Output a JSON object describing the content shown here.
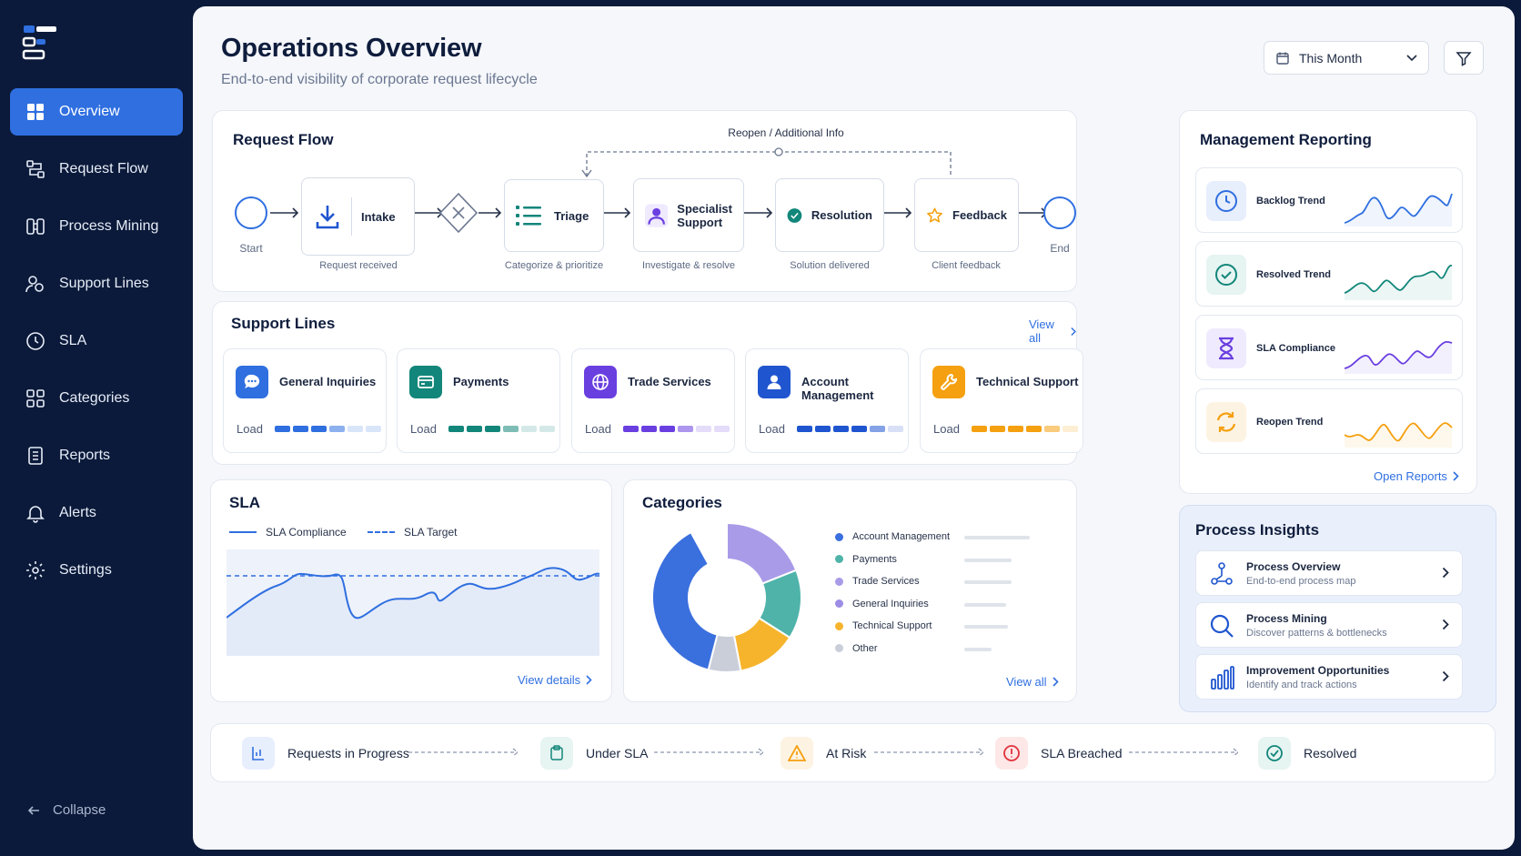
{
  "sidebar": {
    "items": [
      {
        "label": "Overview",
        "icon": "grid-icon"
      },
      {
        "label": "Request Flow",
        "icon": "flow-icon"
      },
      {
        "label": "Process Mining",
        "icon": "mining-icon"
      },
      {
        "label": "Support Lines",
        "icon": "users-icon"
      },
      {
        "label": "SLA",
        "icon": "clock-icon"
      },
      {
        "label": "Categories",
        "icon": "categories-icon"
      },
      {
        "label": "Reports",
        "icon": "report-icon"
      },
      {
        "label": "Alerts",
        "icon": "bell-icon"
      },
      {
        "label": "Settings",
        "icon": "gear-icon"
      }
    ],
    "collapse_label": "Collapse"
  },
  "header": {
    "title": "Operations Overview",
    "subtitle": "End-to-end visibility of corporate request lifecycle",
    "period": "This Month"
  },
  "request_flow": {
    "title": "Request Flow",
    "loop_label": "Reopen / Additional Info",
    "start": "Start",
    "end": "End",
    "steps": [
      {
        "label": "Intake",
        "caption": "Request received"
      },
      {
        "label": "Triage",
        "caption": "Categorize & prioritize"
      },
      {
        "label": "Specialist Support",
        "label_line1": "Specialist",
        "label_line2": "Support",
        "caption": "Investigate & resolve"
      },
      {
        "label": "Resolution",
        "caption": "Solution delivered"
      },
      {
        "label": "Feedback",
        "caption": "Client feedback"
      }
    ]
  },
  "support_lines": {
    "title": "Support Lines",
    "view_all": "View all",
    "load_label": "Load",
    "items": [
      {
        "name": "General Inquiries",
        "color": "#2f6fe0",
        "load": 0.6
      },
      {
        "name": "Payments",
        "color": "#12867a",
        "load": 0.6
      },
      {
        "name": "Trade Services",
        "color": "#6a3fe0",
        "load": 0.6
      },
      {
        "name": "Account Management",
        "color": "#1f55cf",
        "load": 0.7
      },
      {
        "name": "Technical Support",
        "color": "#f5a010",
        "load": 0.7
      }
    ]
  },
  "sla": {
    "title": "SLA",
    "legend_compliance": "SLA Compliance",
    "legend_target": "SLA Target",
    "view_details": "View details"
  },
  "categories": {
    "title": "Categories",
    "view_all": "View all",
    "items": [
      {
        "name": "Account Management",
        "color": "#3a6fde",
        "share": 0.38
      },
      {
        "name": "Payments",
        "color": "#4fb3aa",
        "share": 0.15
      },
      {
        "name": "Trade Services",
        "color": "#a99be8",
        "share": 0.19
      },
      {
        "name": "General Inquiries",
        "color": "#9d8de6",
        "share": 0.0
      },
      {
        "name": "Technical Support",
        "color": "#f6b42c",
        "share": 0.13
      },
      {
        "name": "Other",
        "color": "#c9ced9",
        "share": 0.07
      }
    ]
  },
  "management_reporting": {
    "title": "Management Reporting",
    "open_reports": "Open Reports",
    "items": [
      {
        "label": "Backlog Trend",
        "color": "#2f6fe0"
      },
      {
        "label": "Resolved Trend",
        "color": "#12867a"
      },
      {
        "label": "SLA Compliance",
        "color": "#6a3fe0"
      },
      {
        "label": "Reopen Trend",
        "color": "#f5a010"
      }
    ]
  },
  "process_insights": {
    "title": "Process Insights",
    "items": [
      {
        "title": "Process Overview",
        "subtitle": "End-to-end process map"
      },
      {
        "title": "Process Mining",
        "subtitle": "Discover patterns & bottlenecks"
      },
      {
        "title": "Improvement Opportunities",
        "subtitle": "Identify and track actions"
      }
    ]
  },
  "status_bar": {
    "items": [
      {
        "label": "Requests in Progress"
      },
      {
        "label": "Under SLA"
      },
      {
        "label": "At Risk"
      },
      {
        "label": "SLA Breached"
      },
      {
        "label": "Resolved"
      }
    ]
  }
}
